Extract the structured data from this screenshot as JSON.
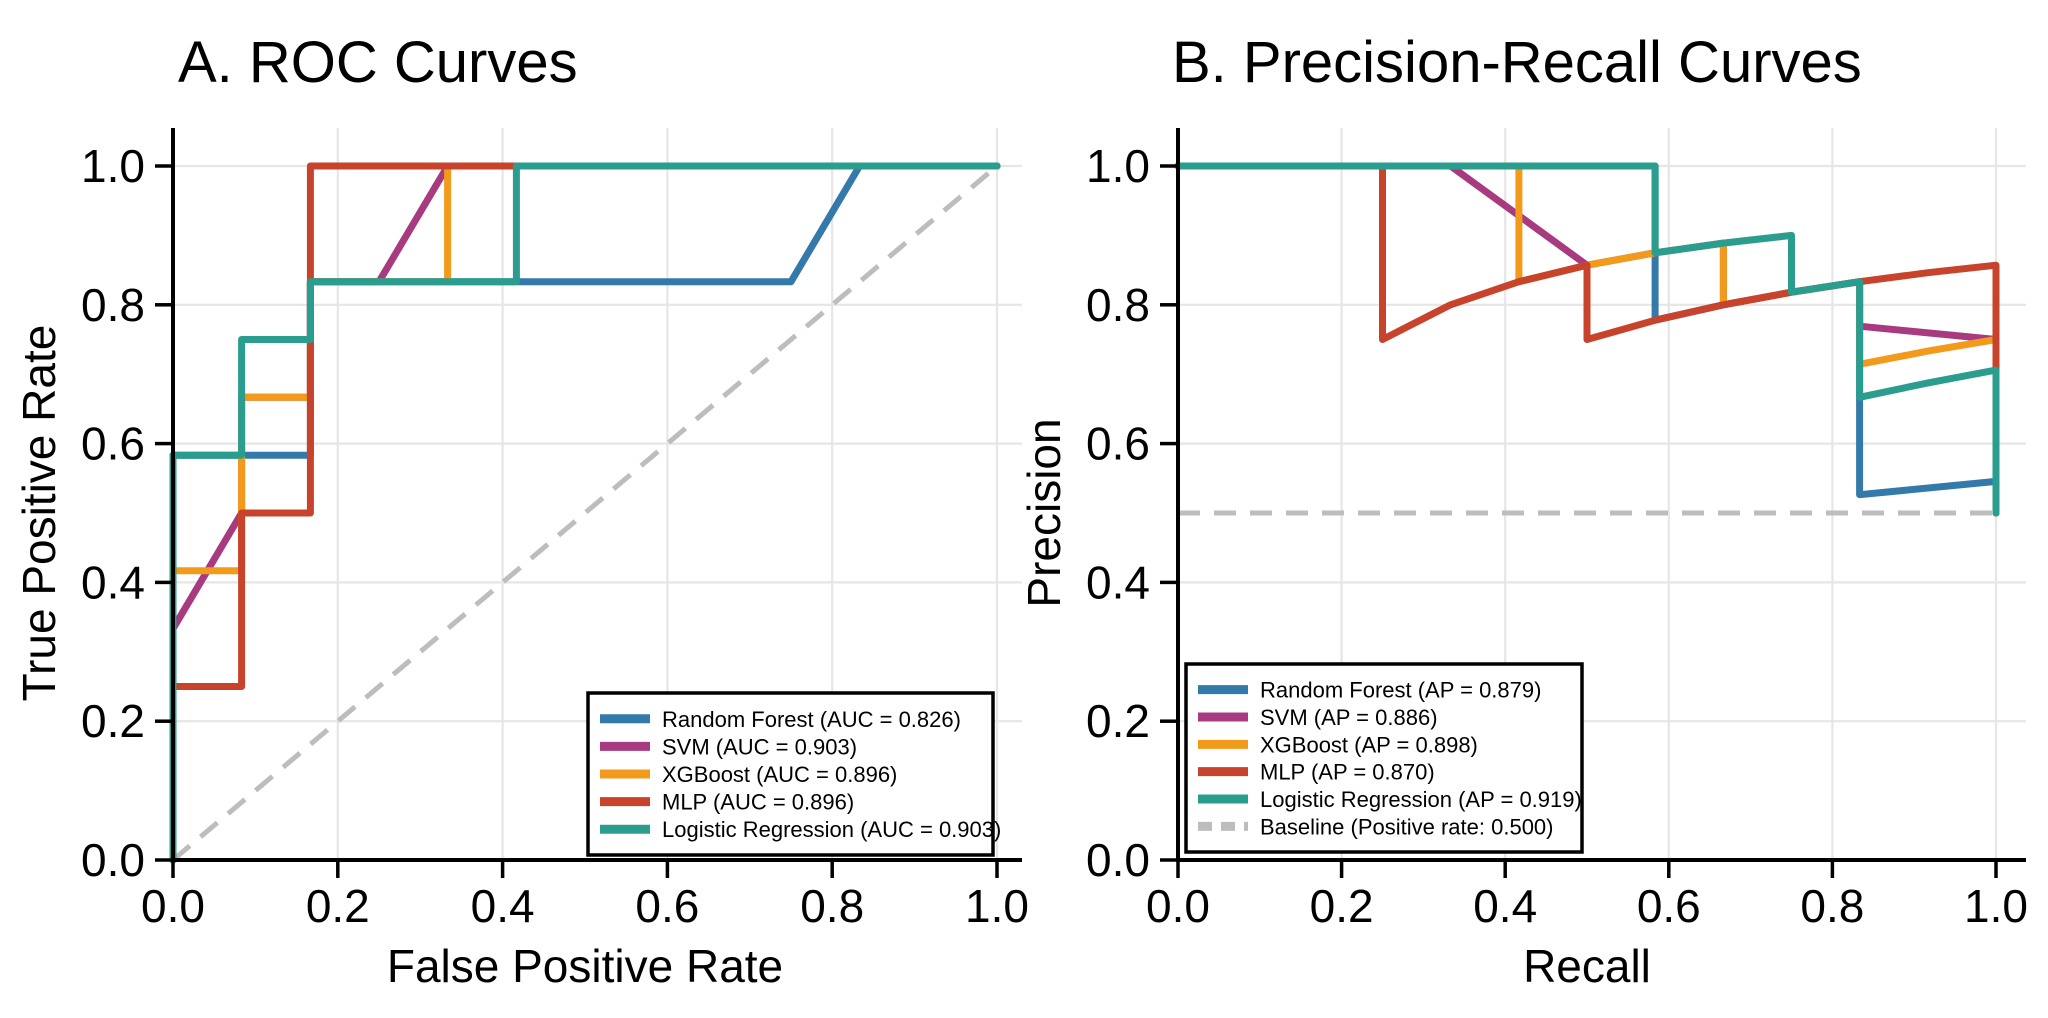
{
  "figure": {
    "background": "#ffffff",
    "text_color": "#000000",
    "grid_color": "#e6e6e6",
    "spine_color": "#000000",
    "reference_color": "#bdbdbd"
  },
  "chart_data": [
    {
      "type": "line",
      "title": "A. ROC Curves",
      "xlabel": "False Positive Rate",
      "ylabel": "True Positive Rate",
      "xlim": [
        0,
        1
      ],
      "ylim": [
        0,
        1
      ],
      "xticks": [
        "0.0",
        "0.2",
        "0.4",
        "0.6",
        "0.8",
        "1.0"
      ],
      "yticks": [
        "0.0",
        "0.2",
        "0.4",
        "0.6",
        "0.8",
        "1.0"
      ],
      "grid": true,
      "legend_position": "lower right",
      "reference_line": {
        "label": null,
        "style": "dashed",
        "color": "#bdbdbd",
        "points": [
          [
            0,
            0
          ],
          [
            1,
            1
          ]
        ]
      },
      "series": [
        {
          "name": "Random Forest",
          "legend_label": "Random Forest (AUC = 0.826)",
          "auc": 0.826,
          "color": "#3379A9",
          "points": [
            [
              0,
              0
            ],
            [
              0,
              0.5833
            ],
            [
              0.1667,
              0.5833
            ],
            [
              0.1667,
              0.8333
            ],
            [
              0.75,
              0.8333
            ],
            [
              0.8333,
              1
            ],
            [
              1,
              1
            ]
          ]
        },
        {
          "name": "SVM",
          "legend_label": "SVM (AUC = 0.903)",
          "auc": 0.903,
          "color": "#A83A80",
          "points": [
            [
              0,
              0
            ],
            [
              0,
              0.3333
            ],
            [
              0.0833,
              0.5
            ],
            [
              0.0833,
              0.6667
            ],
            [
              0.1667,
              0.6667
            ],
            [
              0.1667,
              0.8333
            ],
            [
              0.25,
              0.8333
            ],
            [
              0.3333,
              1
            ],
            [
              1,
              1
            ]
          ]
        },
        {
          "name": "XGBoost",
          "legend_label": "XGBoost (AUC = 0.896)",
          "auc": 0.896,
          "color": "#F29A1B",
          "points": [
            [
              0,
              0
            ],
            [
              0,
              0.4167
            ],
            [
              0.0833,
              0.4167
            ],
            [
              0.0833,
              0.6667
            ],
            [
              0.1667,
              0.6667
            ],
            [
              0.1667,
              0.8333
            ],
            [
              0.3333,
              0.8333
            ],
            [
              0.3333,
              1
            ],
            [
              1,
              1
            ]
          ]
        },
        {
          "name": "MLP",
          "legend_label": "MLP (AUC = 0.896)",
          "auc": 0.896,
          "color": "#C8432C",
          "points": [
            [
              0,
              0
            ],
            [
              0,
              0.25
            ],
            [
              0.0833,
              0.25
            ],
            [
              0.0833,
              0.5
            ],
            [
              0.1667,
              0.5
            ],
            [
              0.1667,
              1
            ],
            [
              1,
              1
            ]
          ]
        },
        {
          "name": "Logistic Regression",
          "legend_label": "Logistic Regression (AUC = 0.903)",
          "auc": 0.903,
          "color": "#2A9D8E",
          "points": [
            [
              0,
              0
            ],
            [
              0,
              0.5833
            ],
            [
              0.0833,
              0.5833
            ],
            [
              0.0833,
              0.75
            ],
            [
              0.1667,
              0.75
            ],
            [
              0.1667,
              0.8333
            ],
            [
              0.4167,
              0.8333
            ],
            [
              0.4167,
              1
            ],
            [
              1,
              1
            ]
          ]
        }
      ]
    },
    {
      "type": "line",
      "title": "B. Precision-Recall Curves",
      "xlabel": "Recall",
      "ylabel": "Precision",
      "xlim": [
        0,
        1
      ],
      "ylim": [
        0,
        1
      ],
      "xticks": [
        "0.0",
        "0.2",
        "0.4",
        "0.6",
        "0.8",
        "1.0"
      ],
      "yticks": [
        "0.0",
        "0.2",
        "0.4",
        "0.6",
        "0.8",
        "1.0"
      ],
      "grid": true,
      "legend_position": "lower left",
      "reference_line": {
        "label": "Baseline (Positive rate: 0.500)",
        "style": "dashed",
        "color": "#bdbdbd",
        "points": [
          [
            0,
            0.5
          ],
          [
            1,
            0.5
          ]
        ]
      },
      "series": [
        {
          "name": "Random Forest",
          "legend_label": "Random Forest (AP = 0.879)",
          "ap": 0.879,
          "color": "#3379A9",
          "points": [
            [
              0,
              1
            ],
            [
              0.5833,
              1
            ],
            [
              0.5833,
              0.7778
            ],
            [
              0.6667,
              0.8
            ],
            [
              0.75,
              0.8182
            ],
            [
              0.8333,
              0.8333
            ],
            [
              0.8333,
              0.5263
            ],
            [
              1,
              0.5455
            ],
            [
              1,
              0.5
            ]
          ]
        },
        {
          "name": "SVM",
          "legend_label": "SVM (AP = 0.886)",
          "ap": 0.886,
          "color": "#A83A80",
          "points": [
            [
              0,
              1
            ],
            [
              0.3333,
              1
            ],
            [
              0.5,
              0.8571
            ],
            [
              0.5833,
              0.875
            ],
            [
              0.6667,
              0.8889
            ],
            [
              0.6667,
              0.8
            ],
            [
              0.75,
              0.8182
            ],
            [
              0.8333,
              0.8333
            ],
            [
              0.8333,
              0.7692
            ],
            [
              1,
              0.75
            ],
            [
              1,
              0.5
            ]
          ]
        },
        {
          "name": "XGBoost",
          "legend_label": "XGBoost (AP = 0.898)",
          "ap": 0.898,
          "color": "#F29A1B",
          "points": [
            [
              0,
              1
            ],
            [
              0.4167,
              1
            ],
            [
              0.4167,
              0.8333
            ],
            [
              0.5,
              0.8571
            ],
            [
              0.5833,
              0.875
            ],
            [
              0.6667,
              0.8889
            ],
            [
              0.6667,
              0.8
            ],
            [
              0.75,
              0.8182
            ],
            [
              0.8333,
              0.8333
            ],
            [
              0.8333,
              0.7143
            ],
            [
              0.9167,
              0.7333
            ],
            [
              1,
              0.75
            ],
            [
              1,
              0.5
            ]
          ]
        },
        {
          "name": "MLP",
          "legend_label": "MLP (AP = 0.870)",
          "ap": 0.87,
          "color": "#C8432C",
          "points": [
            [
              0,
              1
            ],
            [
              0.25,
              1
            ],
            [
              0.25,
              0.75
            ],
            [
              0.3333,
              0.8
            ],
            [
              0.4167,
              0.8333
            ],
            [
              0.5,
              0.8571
            ],
            [
              0.5,
              0.75
            ],
            [
              0.5833,
              0.7778
            ],
            [
              0.6667,
              0.8
            ],
            [
              0.75,
              0.8182
            ],
            [
              0.8333,
              0.8333
            ],
            [
              0.9167,
              0.8462
            ],
            [
              1,
              0.8571
            ],
            [
              1,
              0.5
            ]
          ]
        },
        {
          "name": "Logistic Regression",
          "legend_label": "Logistic Regression (AP = 0.919)",
          "ap": 0.919,
          "color": "#2A9D8E",
          "points": [
            [
              0,
              1
            ],
            [
              0.5833,
              1
            ],
            [
              0.5833,
              0.875
            ],
            [
              0.6667,
              0.8889
            ],
            [
              0.75,
              0.9
            ],
            [
              0.75,
              0.8182
            ],
            [
              0.8333,
              0.8333
            ],
            [
              0.8333,
              0.6667
            ],
            [
              0.9167,
              0.6875
            ],
            [
              1,
              0.7059
            ],
            [
              1,
              0.5
            ]
          ]
        }
      ]
    }
  ]
}
